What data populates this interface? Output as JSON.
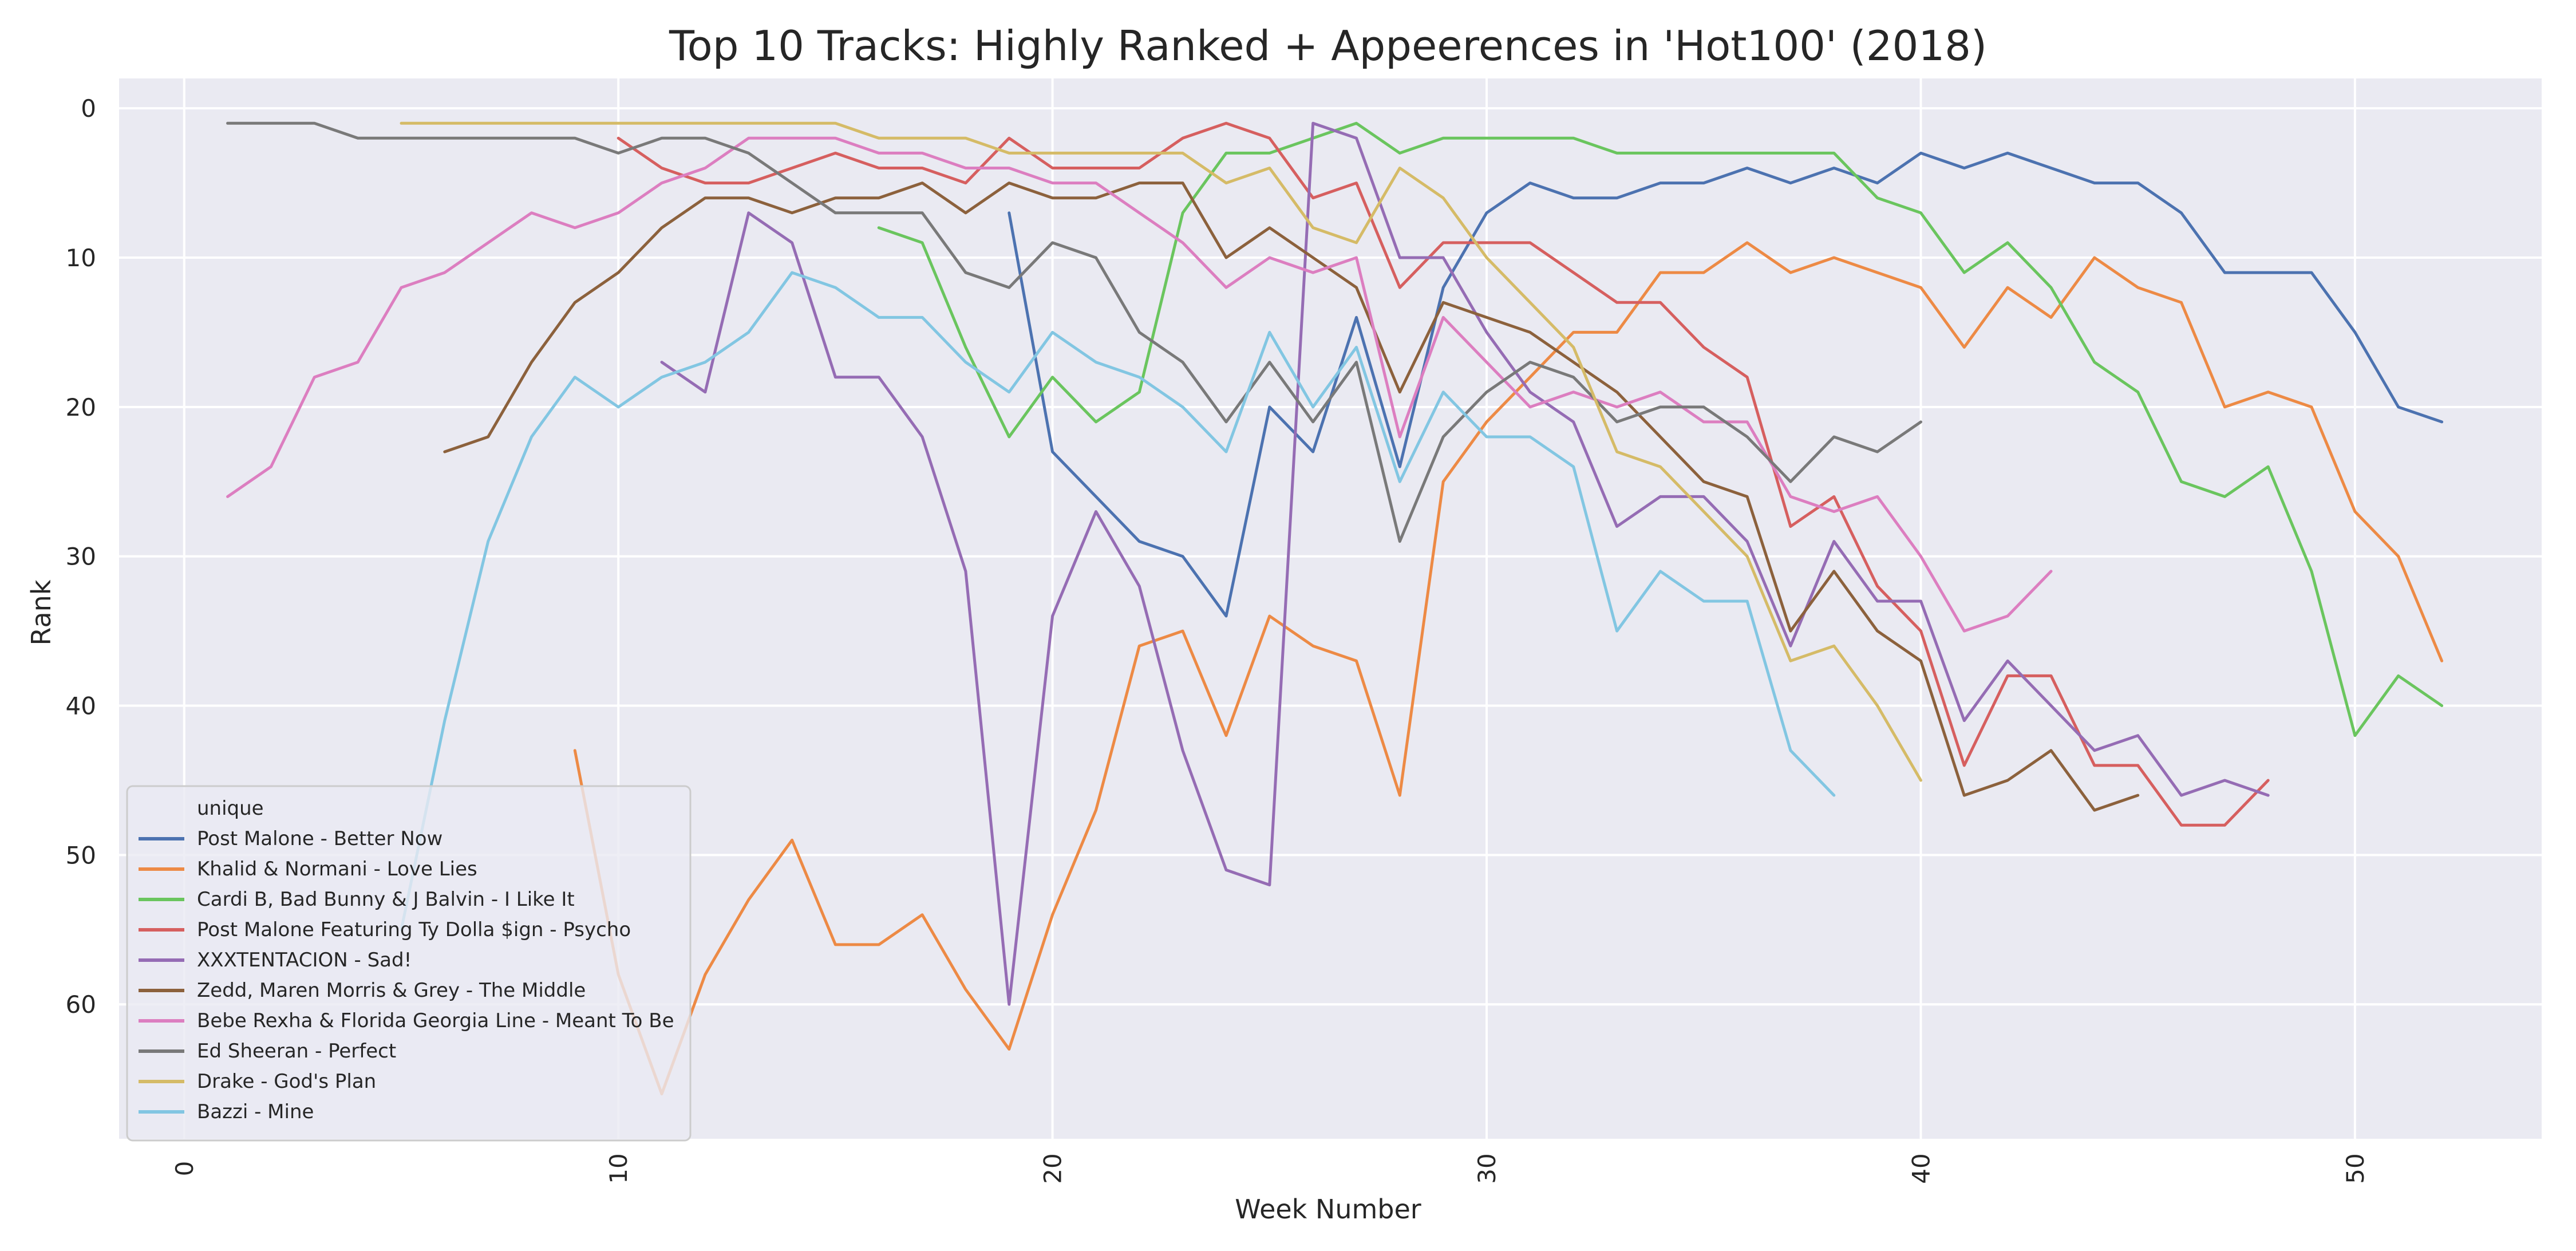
{
  "chart_data": {
    "type": "line",
    "title": "Top 10 Tracks: Highly Ranked + Appeerences  in 'Hot100' (2018)",
    "xlabel": "Week Number",
    "ylabel": "Rank",
    "xlim": [
      -1.5,
      54.3
    ],
    "ylim": [
      69,
      -2
    ],
    "y_inverted": true,
    "grid": true,
    "xticks": [
      0,
      10,
      20,
      30,
      40,
      50
    ],
    "yticks": [
      0,
      10,
      20,
      30,
      40,
      50,
      60
    ],
    "legend": {
      "title": "unique",
      "placement": "lower-left"
    },
    "series": [
      {
        "name": "Post Malone - Better Now",
        "color": "#4c72b0",
        "x": [
          19,
          20,
          21,
          22,
          23,
          24,
          25,
          26,
          27,
          28,
          29,
          30,
          31,
          32,
          33,
          34,
          35,
          36,
          37,
          38,
          39,
          40,
          41,
          42,
          43,
          44,
          45,
          46,
          47,
          48,
          49,
          50,
          51,
          52
        ],
        "y": [
          7,
          23,
          26,
          29,
          30,
          34,
          20,
          23,
          14,
          24,
          12,
          7,
          5,
          6,
          6,
          5,
          5,
          4,
          5,
          4,
          5,
          3,
          4,
          3,
          4,
          5,
          5,
          7,
          11,
          11,
          11,
          15,
          20,
          21
        ]
      },
      {
        "name": "Khalid & Normani - Love Lies",
        "color": "#ed8a45",
        "x": [
          9,
          10,
          11,
          12,
          13,
          14,
          15,
          16,
          17,
          18,
          19,
          20,
          21,
          22,
          23,
          24,
          25,
          26,
          27,
          28,
          29,
          30,
          31,
          32,
          33,
          34,
          35,
          36,
          37,
          38,
          39,
          40,
          41,
          42,
          43,
          44,
          45,
          46,
          47,
          48,
          49,
          50,
          51,
          52
        ],
        "y": [
          43,
          58,
          66,
          58,
          53,
          49,
          56,
          56,
          54,
          59,
          63,
          54,
          47,
          36,
          35,
          42,
          34,
          36,
          37,
          46,
          25,
          21,
          18,
          15,
          15,
          11,
          11,
          9,
          11,
          10,
          11,
          12,
          16,
          12,
          14,
          10,
          12,
          13,
          20,
          19,
          20,
          27,
          30,
          37
        ]
      },
      {
        "name": "Cardi B, Bad Bunny & J Balvin - I Like It",
        "color": "#6ac55e",
        "x": [
          16,
          17,
          18,
          19,
          20,
          21,
          22,
          23,
          24,
          25,
          26,
          27,
          28,
          29,
          30,
          31,
          32,
          33,
          34,
          35,
          36,
          37,
          38,
          39,
          40,
          41,
          42,
          43,
          44,
          45,
          46,
          47,
          48,
          49,
          50,
          51,
          52
        ],
        "y": [
          8,
          9,
          16,
          22,
          18,
          21,
          19,
          7,
          3,
          3,
          2,
          1,
          3,
          2,
          2,
          2,
          2,
          3,
          3,
          3,
          3,
          3,
          3,
          6,
          7,
          11,
          9,
          12,
          17,
          19,
          25,
          26,
          24,
          31,
          42,
          38,
          40
        ]
      },
      {
        "name": "Post Malone Featuring Ty Dolla $ign - Psycho",
        "color": "#d65f5f",
        "x": [
          10,
          11,
          12,
          13,
          14,
          15,
          16,
          17,
          18,
          19,
          20,
          21,
          22,
          23,
          24,
          25,
          26,
          27,
          28,
          29,
          30,
          31,
          32,
          33,
          34,
          35,
          36,
          37,
          38,
          39,
          40,
          41,
          42,
          43,
          44,
          45,
          46,
          47,
          48
        ],
        "y": [
          2,
          4,
          5,
          5,
          4,
          3,
          4,
          4,
          5,
          2,
          4,
          4,
          4,
          2,
          1,
          2,
          6,
          5,
          12,
          9,
          9,
          9,
          11,
          13,
          13,
          16,
          18,
          28,
          26,
          32,
          35,
          44,
          38,
          38,
          44,
          44,
          48,
          48,
          45
        ]
      },
      {
        "name": "XXXTENTACION - Sad!",
        "color": "#956cb4",
        "x": [
          11,
          12,
          13,
          14,
          15,
          16,
          17,
          18,
          19,
          20,
          21,
          22,
          23,
          24,
          25,
          26,
          27,
          28,
          29,
          30,
          31,
          32,
          33,
          34,
          35,
          36,
          37,
          38,
          39,
          40,
          41,
          42,
          43,
          44,
          45,
          46,
          47,
          48
        ],
        "y": [
          17,
          19,
          7,
          9,
          18,
          18,
          22,
          31,
          60,
          34,
          27,
          32,
          43,
          51,
          52,
          1,
          2,
          10,
          10,
          15,
          19,
          21,
          28,
          26,
          26,
          29,
          36,
          29,
          33,
          33,
          41,
          37,
          40,
          43,
          42,
          46,
          45,
          46
        ]
      },
      {
        "name": "Zedd, Maren Morris & Grey - The Middle",
        "color": "#8c613c",
        "x": [
          6,
          7,
          8,
          9,
          10,
          11,
          12,
          13,
          14,
          15,
          16,
          17,
          18,
          19,
          20,
          21,
          22,
          23,
          24,
          25,
          26,
          27,
          28,
          29,
          30,
          31,
          32,
          33,
          34,
          35,
          36,
          37,
          38,
          39,
          40,
          41,
          42,
          43,
          44,
          45
        ],
        "y": [
          23,
          22,
          17,
          13,
          11,
          8,
          6,
          6,
          7,
          6,
          6,
          5,
          7,
          5,
          6,
          6,
          5,
          5,
          10,
          8,
          10,
          12,
          19,
          13,
          14,
          15,
          17,
          19,
          22,
          25,
          26,
          35,
          31,
          35,
          37,
          46,
          45,
          43,
          47,
          46
        ]
      },
      {
        "name": "Bebe Rexha & Florida Georgia Line - Meant To Be",
        "color": "#dc7ec0",
        "x": [
          1,
          2,
          3,
          4,
          5,
          6,
          7,
          8,
          9,
          10,
          11,
          12,
          13,
          14,
          15,
          16,
          17,
          18,
          19,
          20,
          21,
          22,
          23,
          24,
          25,
          26,
          27,
          28,
          29,
          30,
          31,
          32,
          33,
          34,
          35,
          36,
          37,
          38,
          39,
          40,
          41,
          42,
          43
        ],
        "y": [
          26,
          24,
          18,
          17,
          12,
          11,
          9,
          7,
          8,
          7,
          5,
          4,
          2,
          2,
          2,
          3,
          3,
          4,
          4,
          5,
          5,
          7,
          9,
          12,
          10,
          11,
          10,
          22,
          14,
          17,
          20,
          19,
          20,
          19,
          21,
          21,
          26,
          27,
          26,
          30,
          35,
          34,
          31
        ]
      },
      {
        "name": "Ed Sheeran - Perfect",
        "color": "#797979",
        "x": [
          1,
          2,
          3,
          4,
          5,
          6,
          7,
          8,
          9,
          10,
          11,
          12,
          13,
          14,
          15,
          16,
          17,
          18,
          19,
          20,
          21,
          22,
          23,
          24,
          25,
          26,
          27,
          28,
          29,
          30,
          31,
          32,
          33,
          34,
          35,
          36,
          37,
          38,
          39,
          40
        ],
        "y": [
          1,
          1,
          1,
          2,
          2,
          2,
          2,
          2,
          2,
          3,
          2,
          2,
          3,
          5,
          7,
          7,
          7,
          11,
          12,
          9,
          10,
          15,
          17,
          21,
          17,
          21,
          17,
          29,
          22,
          19,
          17,
          18,
          21,
          20,
          20,
          22,
          25,
          22,
          23,
          21
        ]
      },
      {
        "name": "Drake - God's Plan",
        "color": "#d5bb67",
        "x": [
          5,
          6,
          7,
          8,
          9,
          10,
          11,
          12,
          13,
          14,
          15,
          16,
          17,
          18,
          19,
          20,
          21,
          22,
          23,
          24,
          25,
          26,
          27,
          28,
          29,
          30,
          31,
          32,
          33,
          34,
          35,
          36,
          37,
          38,
          39,
          40
        ],
        "y": [
          1,
          1,
          1,
          1,
          1,
          1,
          1,
          1,
          1,
          1,
          1,
          2,
          2,
          2,
          3,
          3,
          3,
          3,
          3,
          5,
          4,
          8,
          9,
          4,
          6,
          10,
          13,
          16,
          23,
          24,
          27,
          30,
          37,
          36,
          40,
          45
        ]
      },
      {
        "name": "Bazzi - Mine",
        "color": "#82c6e2",
        "x": [
          5,
          6,
          7,
          8,
          9,
          10,
          11,
          12,
          13,
          14,
          15,
          16,
          17,
          18,
          19,
          20,
          21,
          22,
          23,
          24,
          25,
          26,
          27,
          28,
          29,
          30,
          31,
          32,
          33,
          34,
          35,
          36,
          37,
          38
        ],
        "y": [
          55,
          41,
          29,
          22,
          18,
          20,
          18,
          17,
          15,
          11,
          12,
          14,
          14,
          17,
          19,
          15,
          17,
          18,
          20,
          23,
          15,
          20,
          16,
          25,
          19,
          22,
          22,
          24,
          35,
          31,
          33,
          33,
          43,
          46
        ]
      }
    ]
  }
}
